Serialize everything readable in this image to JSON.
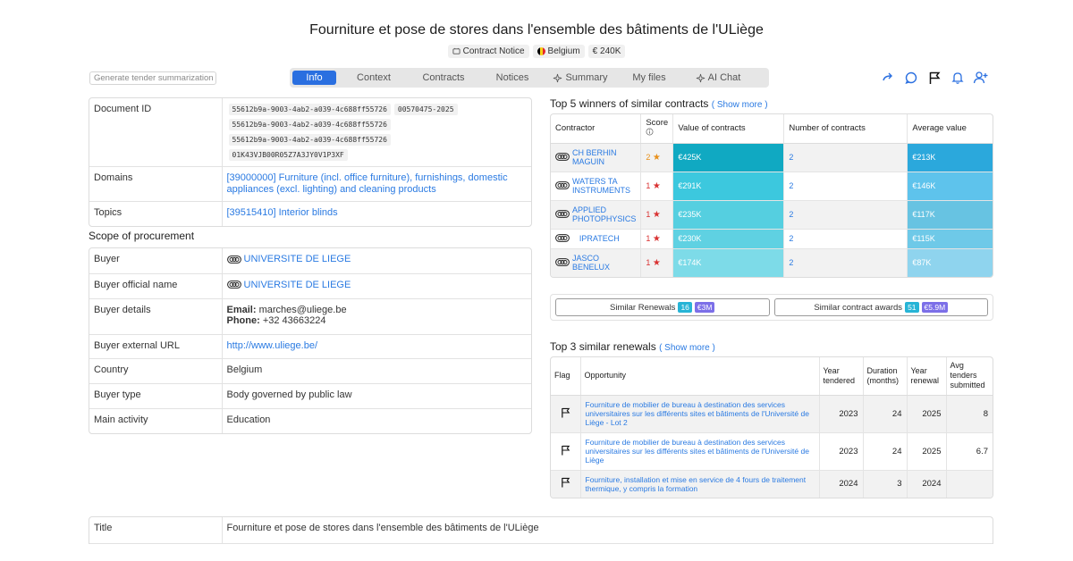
{
  "title": "Fourniture et pose de stores dans l'ensemble des bâtiments de l'ULiège",
  "tags": {
    "notice": "Contract Notice",
    "country": "Belgium",
    "value": "€ 240K"
  },
  "generate_button": "Generate tender summarization",
  "tabs": [
    {
      "label": "Info",
      "active": true
    },
    {
      "label": "Context"
    },
    {
      "label": "Contracts"
    },
    {
      "label": "Notices"
    },
    {
      "label": "Summary"
    },
    {
      "label": "My files"
    },
    {
      "label": "AI Chat"
    }
  ],
  "toolbar_icons": [
    "share-icon",
    "comment-icon",
    "flag-icon",
    "bell-icon",
    "add-user-icon"
  ],
  "details": {
    "document_id_label": "Document ID",
    "document_ids": [
      "55612b9a-9003-4ab2-a039-4c688ff55726",
      "00570475-2025",
      "55612b9a-9003-4ab2-a039-4c688ff55726",
      "55612b9a-9003-4ab2-a039-4c688ff55726",
      "01K43VJB00R05Z7A3JY0V1P3XF"
    ],
    "domains_label": "Domains",
    "domains_value": "[39000000] Furniture (incl. office furniture), furnishings, domestic appliances (excl. lighting) and cleaning products",
    "topics_label": "Topics",
    "topics_value": "[39515410] Interior blinds"
  },
  "scope": {
    "heading": "Scope of procurement",
    "buyer_label": "Buyer",
    "buyer_value": "UNIVERSITE DE LIEGE",
    "official_label": "Buyer official name",
    "official_value": "UNIVERSITE DE LIEGE",
    "details_label": "Buyer details",
    "email_label": "Email:",
    "email_value": "marches@uliege.be",
    "phone_label": "Phone:",
    "phone_value": "+32 43663224",
    "url_label": "Buyer external URL",
    "url_value": "http://www.uliege.be/",
    "country_label": "Country",
    "country_value": "Belgium",
    "type_label": "Buyer type",
    "type_value": "Body governed by public law",
    "activity_label": "Main activity",
    "activity_value": "Education"
  },
  "winners": {
    "heading": "Top 5 winners of similar contracts",
    "show_more": "Show more",
    "headers": {
      "contractor": "Contractor",
      "score": "Score",
      "value": "Value of contracts",
      "number": "Number of contracts",
      "average": "Average value"
    },
    "rows": [
      {
        "name": "CH BERHIN MAGUIN",
        "score": "2",
        "value": "€425K",
        "number": "2",
        "average": "€213K",
        "value_color": "#10a9c2",
        "avg_color": "#2ba8dc"
      },
      {
        "name": "WATERS TA INSTRUMENTS",
        "score": "1",
        "value": "€291K",
        "number": "2",
        "average": "€146K",
        "value_color": "#3cc8de",
        "avg_color": "#5ec3ec"
      },
      {
        "name": "APPLIED PHOTOPHYSICS",
        "score": "1",
        "value": "€235K",
        "number": "2",
        "average": "€117K",
        "value_color": "#55cfe0",
        "avg_color": "#67c3e2"
      },
      {
        "name": "IPRATECH",
        "score": "1",
        "value": "€230K",
        "number": "2",
        "average": "€115K",
        "value_color": "#5fd1e2",
        "avg_color": "#6ec9e8"
      },
      {
        "name": "JASCO BENELUX",
        "score": "1",
        "value": "€174K",
        "number": "2",
        "average": "€87K",
        "value_color": "#7ddbe8",
        "avg_color": "#8fd4ee"
      }
    ]
  },
  "similar": {
    "renewals_label": "Similar Renewals",
    "renewals_count": "16",
    "renewals_value": "€3M",
    "awards_label": "Similar contract awards",
    "awards_count": "51",
    "awards_value": "€5.9M"
  },
  "renewals": {
    "heading": "Top 3 similar renewals",
    "show_more": "Show more",
    "headers": {
      "flag": "Flag",
      "opportunity": "Opportunity",
      "year_tendered": "Year tendered",
      "duration": "Duration (months)",
      "year_renewal": "Year renewal",
      "avg_tenders": "Avg tenders submitted"
    },
    "rows": [
      {
        "opportunity": "Fourniture de mobilier de bureau à destination des services universitaires sur les différents sites et bâtiments de l'Université de Liège - Lot 2",
        "year_tendered": "2023",
        "duration": "24",
        "year_renewal": "2025",
        "avg_tenders": "8"
      },
      {
        "opportunity": "Fourniture de mobilier de bureau à destination des services universitaires sur les différents sites et bâtiments de l'Université de Liège",
        "year_tendered": "2023",
        "duration": "24",
        "year_renewal": "2025",
        "avg_tenders": "6.7"
      },
      {
        "opportunity": "Fourniture, installation et mise en service de 4 fours de traitement thermique, y compris la formation",
        "year_tendered": "2024",
        "duration": "3",
        "year_renewal": "2024",
        "avg_tenders": ""
      }
    ]
  },
  "bottom": {
    "title_label": "Title",
    "title_value": "Fourniture et pose de stores dans l'ensemble des bâtiments de l'ULiège"
  }
}
